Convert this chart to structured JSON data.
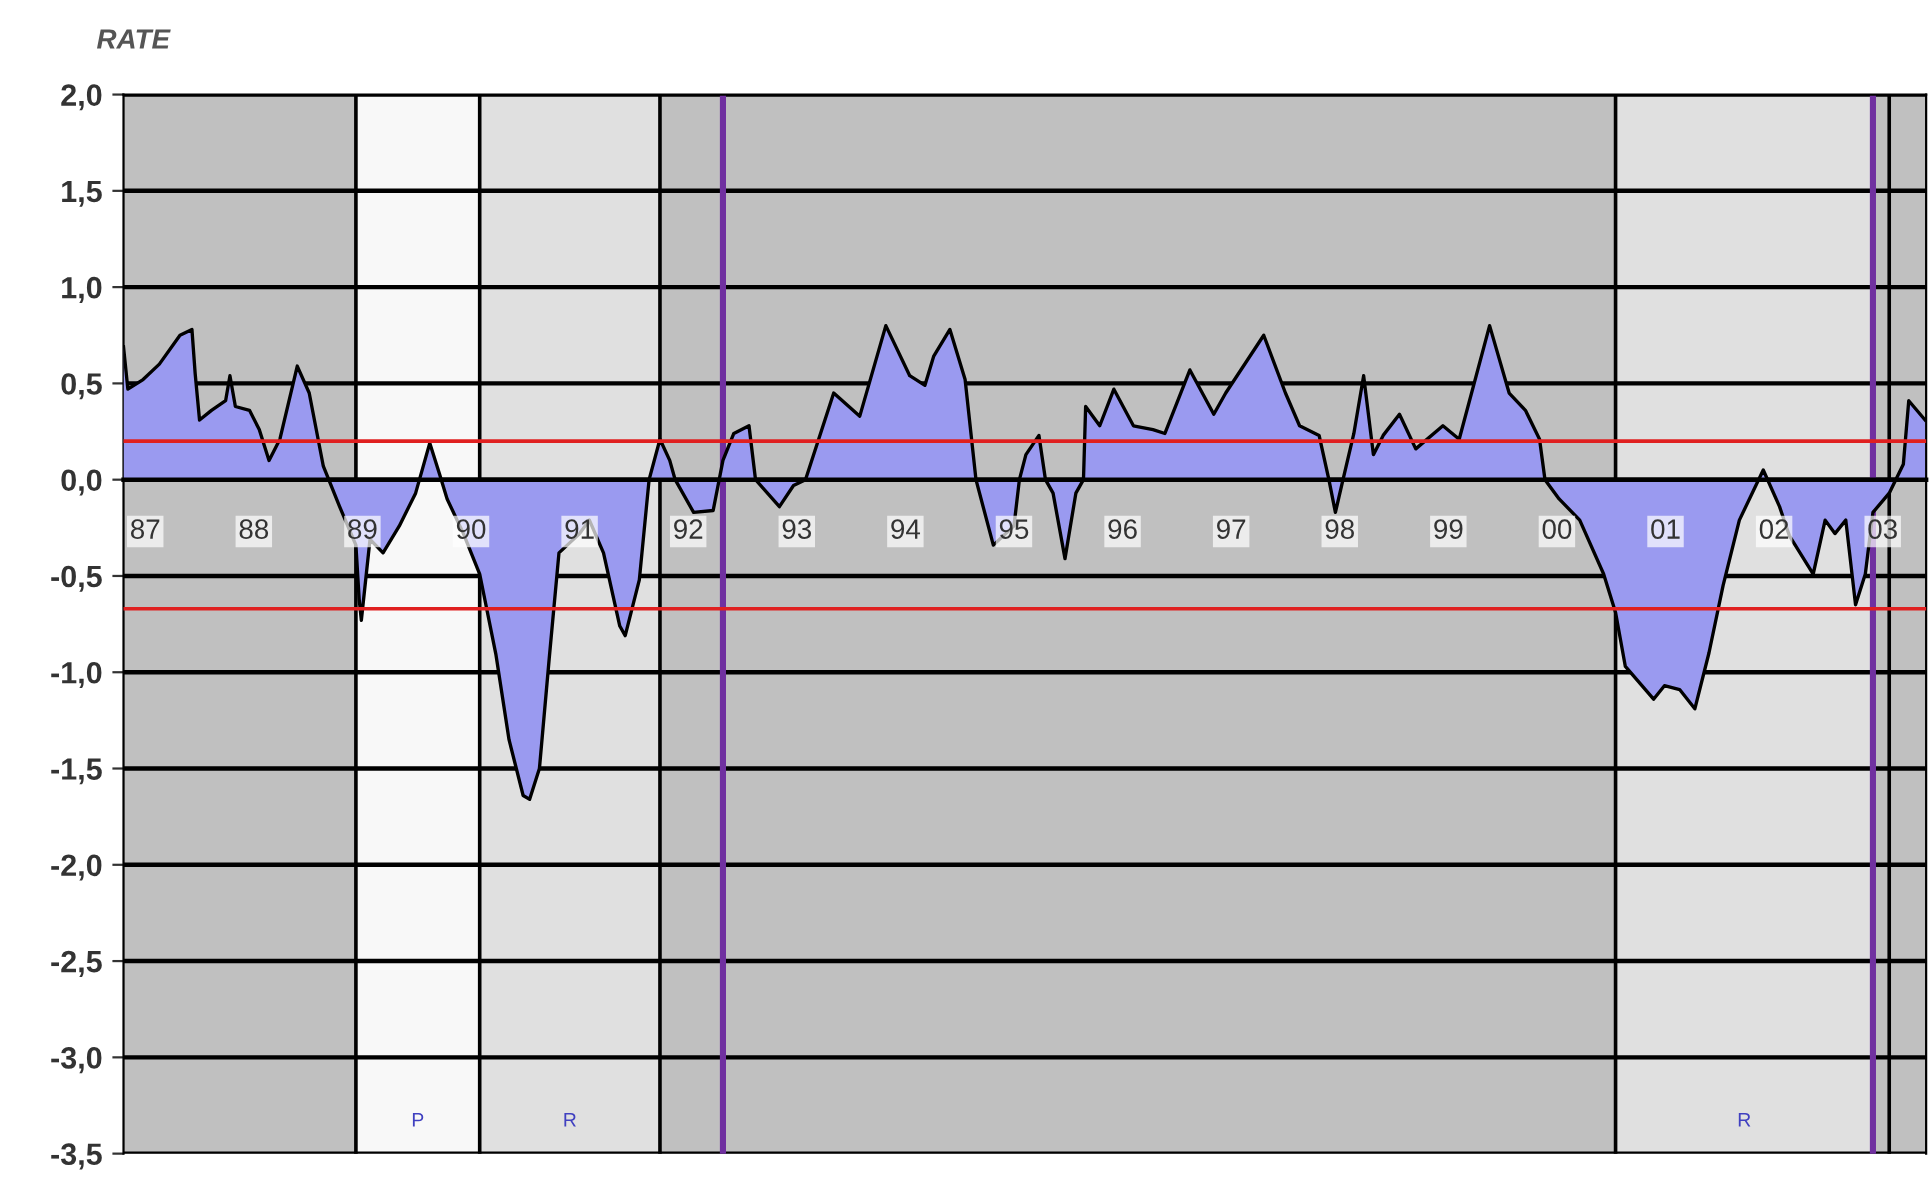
{
  "chart_data": {
    "type": "area",
    "ylabel": "RATE",
    "xlim": [
      1986.8,
      2003.4
    ],
    "xticks": [
      {
        "value": 1987,
        "label": "87"
      },
      {
        "value": 1988,
        "label": "88"
      },
      {
        "value": 1989,
        "label": "89"
      },
      {
        "value": 1990,
        "label": "90"
      },
      {
        "value": 1991,
        "label": "91"
      },
      {
        "value": 1992,
        "label": "92"
      },
      {
        "value": 1993,
        "label": "93"
      },
      {
        "value": 1994,
        "label": "94"
      },
      {
        "value": 1995,
        "label": "95"
      },
      {
        "value": 1996,
        "label": "96"
      },
      {
        "value": 1997,
        "label": "97"
      },
      {
        "value": 1998,
        "label": "98"
      },
      {
        "value": 1999,
        "label": "99"
      },
      {
        "value": 2000,
        "label": "00"
      },
      {
        "value": 2001,
        "label": "01"
      },
      {
        "value": 2002,
        "label": "02"
      },
      {
        "value": 2003,
        "label": "03"
      }
    ],
    "ylim": [
      -3.5,
      2.0
    ],
    "yticks": [
      {
        "value": 2.0,
        "label": "2,0"
      },
      {
        "value": 1.5,
        "label": "1,5"
      },
      {
        "value": 1.0,
        "label": "1,0"
      },
      {
        "value": 0.5,
        "label": "0,5"
      },
      {
        "value": 0.0,
        "label": "0,0"
      },
      {
        "value": -0.5,
        "label": "-0,5"
      },
      {
        "value": -1.0,
        "label": "-1,0"
      },
      {
        "value": -1.5,
        "label": "-1,5"
      },
      {
        "value": -2.0,
        "label": "-2,0"
      },
      {
        "value": -2.5,
        "label": "-2,5"
      },
      {
        "value": -3.0,
        "label": "-3,0"
      },
      {
        "value": -3.5,
        "label": "-3,5"
      }
    ],
    "grid": "y",
    "series": [
      {
        "color": "#9a9af0",
        "x": [
          1986.8,
          1986.84,
          1986.98,
          1987.13,
          1987.32,
          1987.43,
          1987.46,
          1987.5,
          1987.61,
          1987.74,
          1987.78,
          1987.83,
          1987.96,
          1988.05,
          1988.14,
          1988.24,
          1988.4,
          1988.51,
          1988.64,
          1988.79,
          1988.94,
          1988.97,
          1988.99,
          1989.07,
          1989.19,
          1989.34,
          1989.49,
          1989.62,
          1989.71,
          1989.78,
          1989.93,
          1990.08,
          1990.23,
          1990.35,
          1990.48,
          1990.54,
          1990.63,
          1990.72,
          1990.81,
          1991.0,
          1991.09,
          1991.22,
          1991.37,
          1991.42,
          1991.55,
          1991.64,
          1991.74,
          1991.83,
          1991.88,
          1992.05,
          1992.23,
          1992.32,
          1992.42,
          1992.56,
          1992.62,
          1992.84,
          1992.97,
          1993.08,
          1993.34,
          1993.58,
          1993.82,
          1994.04,
          1994.18,
          1994.26,
          1994.41,
          1994.55,
          1994.65,
          1994.81,
          1995.0,
          1995.05,
          1995.11,
          1995.23,
          1995.29,
          1995.36,
          1995.47,
          1995.57,
          1995.64,
          1995.66,
          1995.79,
          1995.92,
          1996.1,
          1996.28,
          1996.39,
          1996.62,
          1996.84,
          1996.95,
          1997.3,
          1997.5,
          1997.63,
          1997.81,
          1997.9,
          1997.96,
          1998.03,
          1998.13,
          1998.22,
          1998.31,
          1998.4,
          1998.55,
          1998.7,
          1998.95,
          1999.1,
          1999.38,
          1999.56,
          1999.71,
          1999.84,
          1999.89,
          2000.02,
          2000.21,
          2000.43,
          2000.54,
          2000.63,
          2000.89,
          2000.99,
          2001.13,
          2001.27,
          2001.4,
          2001.53,
          2001.68,
          2001.9,
          2002.05,
          2002.14,
          2002.36,
          2002.47,
          2002.56,
          2002.66,
          2002.75,
          2002.84,
          2002.91,
          2003.06,
          2003.19,
          2003.24,
          2003.39
        ],
        "values": [
          0.69,
          0.47,
          0.52,
          0.6,
          0.75,
          0.78,
          0.55,
          0.31,
          0.36,
          0.41,
          0.54,
          0.38,
          0.36,
          0.26,
          0.1,
          0.21,
          0.59,
          0.45,
          0.07,
          -0.14,
          -0.34,
          -0.62,
          -0.73,
          -0.31,
          -0.38,
          -0.24,
          -0.07,
          0.19,
          0.03,
          -0.1,
          -0.28,
          -0.49,
          -0.91,
          -1.35,
          -1.64,
          -1.66,
          -1.5,
          -0.93,
          -0.38,
          -0.28,
          -0.21,
          -0.38,
          -0.76,
          -0.81,
          -0.52,
          0.0,
          0.21,
          0.1,
          0.0,
          -0.17,
          -0.16,
          0.1,
          0.24,
          0.28,
          0.0,
          -0.14,
          -0.03,
          0.0,
          0.45,
          0.33,
          0.8,
          0.54,
          0.49,
          0.64,
          0.78,
          0.52,
          0.0,
          -0.34,
          -0.24,
          0.0,
          0.13,
          0.23,
          0.0,
          -0.07,
          -0.41,
          -0.07,
          0.0,
          0.38,
          0.28,
          0.47,
          0.28,
          0.26,
          0.24,
          0.57,
          0.34,
          0.45,
          0.75,
          0.45,
          0.28,
          0.23,
          0.0,
          -0.17,
          0.0,
          0.24,
          0.54,
          0.13,
          0.23,
          0.34,
          0.16,
          0.28,
          0.21,
          0.8,
          0.45,
          0.36,
          0.21,
          0.0,
          -0.1,
          -0.21,
          -0.49,
          -0.69,
          -0.97,
          -1.14,
          -1.07,
          -1.09,
          -1.19,
          -0.9,
          -0.55,
          -0.21,
          0.05,
          -0.14,
          -0.29,
          -0.49,
          -0.21,
          -0.28,
          -0.21,
          -0.65,
          -0.49,
          -0.17,
          -0.07,
          0.08,
          0.41,
          0.31
        ]
      }
    ],
    "bands": [
      {
        "axis": "x",
        "from": 1986.8,
        "to": 1988.94,
        "color": "#c0c0c0"
      },
      {
        "axis": "x",
        "from": 1988.94,
        "to": 1990.08,
        "label": "P",
        "color": "#f8f8f8"
      },
      {
        "axis": "x",
        "from": 1990.08,
        "to": 1991.74,
        "label": "R",
        "color": "#e0e0e0"
      },
      {
        "axis": "x",
        "from": 1991.74,
        "to": 2000.54,
        "color": "#c0c0c0"
      },
      {
        "axis": "x",
        "from": 2000.54,
        "to": 2002.91,
        "label": "R",
        "color": "#e0e0e0"
      },
      {
        "axis": "x",
        "from": 2002.91,
        "to": 2003.4,
        "color": "#c0c0c0"
      }
    ],
    "ref_lines": [
      {
        "axis": "x",
        "value": 1988.94,
        "color": "#000000"
      },
      {
        "axis": "x",
        "value": 1990.08,
        "color": "#000000"
      },
      {
        "axis": "x",
        "value": 1991.74,
        "color": "#000000"
      },
      {
        "axis": "x",
        "value": 2000.54,
        "color": "#000000"
      },
      {
        "axis": "x",
        "value": 2003.06,
        "color": "#000000"
      },
      {
        "axis": "x",
        "value": 1992.32,
        "color": "#7030a0"
      },
      {
        "axis": "x",
        "value": 2002.91,
        "color": "#7030a0"
      },
      {
        "axis": "y",
        "value": 0.2,
        "color": "#e02020"
      },
      {
        "axis": "y",
        "value": -0.67,
        "color": "#e02020"
      }
    ]
  }
}
